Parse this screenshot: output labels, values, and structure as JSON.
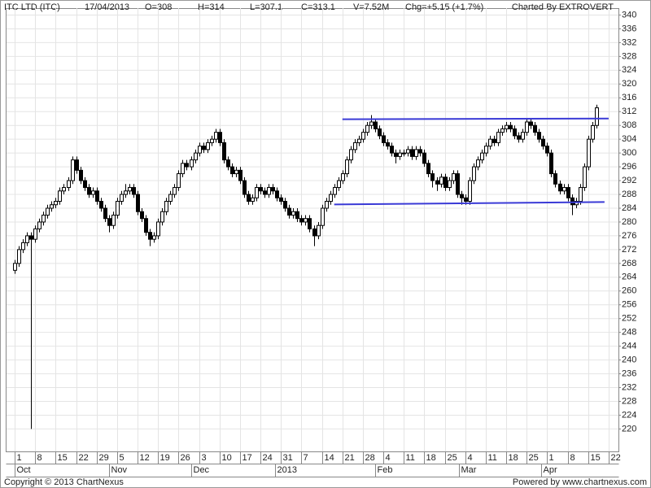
{
  "header": {
    "title": "ITC LTD (ITC)",
    "date": "17/04/2013",
    "open": "O=308",
    "high": "H=314",
    "low": "L=307.1",
    "close": "C=313.1",
    "volume": "V=7.52M",
    "change": "Chg=+5.15 (+1.7%)",
    "credit": "Charted By EXTROVERT"
  },
  "footer": {
    "copyright": "Copyright © 2013 ChartNexus",
    "powered": "Powered by www.chartnexus.com"
  },
  "chart_data": {
    "type": "candlestick",
    "x": [
      0,
      1,
      2,
      3,
      4,
      5,
      6,
      7,
      8,
      9,
      10,
      11,
      12,
      13,
      14,
      15,
      16,
      17,
      18,
      19,
      20,
      21,
      22,
      23,
      24,
      25,
      26,
      27,
      28,
      29,
      30,
      31,
      32,
      33,
      34,
      35,
      36,
      37,
      38,
      39,
      40,
      41,
      42,
      43,
      44,
      45,
      46,
      47,
      48,
      49,
      50,
      51,
      52,
      53,
      54,
      55,
      56,
      57,
      58,
      59,
      60,
      61,
      62,
      63,
      64,
      65,
      66,
      67,
      68,
      69,
      70,
      71,
      72,
      73,
      74,
      75,
      76,
      77,
      78,
      79,
      80,
      81,
      82,
      83,
      84,
      85,
      86,
      87,
      88,
      89,
      90,
      91,
      92,
      93,
      94,
      95,
      96,
      97,
      98,
      99,
      100,
      101,
      102,
      103,
      104,
      105,
      106,
      107,
      108,
      109,
      110,
      111,
      112,
      113,
      114,
      115,
      116,
      117,
      118,
      119,
      120,
      121,
      122,
      123,
      124,
      125,
      126,
      127,
      128,
      129,
      130,
      131,
      132,
      133,
      134,
      135,
      136,
      137,
      138,
      139,
      140,
      141,
      142
    ],
    "open": [
      266,
      268,
      272,
      274,
      276,
      275,
      278,
      280,
      282,
      284,
      285,
      286,
      289,
      290,
      292,
      298,
      295,
      292,
      290,
      288,
      289,
      286,
      284,
      281,
      279,
      282,
      286,
      288,
      289,
      290,
      288,
      283,
      281,
      277,
      275,
      276,
      280,
      283,
      286,
      288,
      290,
      294,
      297,
      296,
      298,
      300,
      302,
      301,
      303,
      304,
      306,
      303,
      298,
      296,
      294,
      295,
      292,
      288,
      286,
      287,
      290,
      289,
      288,
      290,
      289,
      287,
      286,
      284,
      282,
      283,
      281,
      280,
      281,
      278,
      276,
      279,
      284,
      286,
      288,
      290,
      292,
      294,
      298,
      301,
      303,
      304,
      306,
      308,
      309,
      307,
      305,
      303,
      302,
      300,
      299,
      300,
      300,
      301,
      299,
      301,
      300,
      297,
      294,
      292,
      291,
      293,
      290,
      292,
      294,
      288,
      287,
      286,
      292,
      296,
      298,
      300,
      302,
      304,
      303,
      306,
      307,
      308,
      307,
      305,
      304,
      306,
      309,
      308,
      306,
      304,
      302,
      300,
      294,
      291,
      289,
      290,
      287,
      285,
      286,
      290,
      296,
      304,
      308
    ],
    "high": [
      269,
      273,
      275,
      277,
      277,
      279,
      281,
      283,
      285,
      286,
      287,
      290,
      291,
      293,
      299,
      299,
      296,
      293,
      291,
      290,
      290,
      287,
      285,
      282,
      283,
      287,
      289,
      291,
      291,
      291,
      289,
      284,
      282,
      278,
      277,
      281,
      284,
      287,
      289,
      291,
      295,
      298,
      298,
      299,
      301,
      303,
      303,
      304,
      305,
      307,
      307,
      304,
      299,
      297,
      296,
      296,
      293,
      289,
      288,
      291,
      291,
      290,
      291,
      291,
      290,
      288,
      287,
      285,
      284,
      284,
      282,
      282,
      282,
      279,
      280,
      285,
      287,
      289,
      291,
      293,
      295,
      299,
      302,
      304,
      305,
      307,
      309,
      311,
      310,
      308,
      306,
      304,
      303,
      301,
      301,
      301,
      302,
      302,
      302,
      302,
      301,
      298,
      295,
      293,
      294,
      294,
      293,
      295,
      295,
      289,
      288,
      293,
      297,
      299,
      301,
      303,
      305,
      305,
      307,
      308,
      309,
      309,
      308,
      306,
      307,
      310,
      310,
      309,
      307,
      305,
      303,
      301,
      295,
      292,
      291,
      291,
      288,
      287,
      291,
      297,
      305,
      309,
      314
    ],
    "low": [
      265,
      267,
      271,
      273,
      220,
      274,
      277,
      279,
      281,
      283,
      284,
      285,
      288,
      289,
      291,
      294,
      291,
      289,
      287,
      287,
      285,
      283,
      280,
      277,
      278,
      281,
      285,
      287,
      288,
      287,
      282,
      280,
      276,
      273,
      274,
      275,
      279,
      282,
      285,
      287,
      289,
      293,
      295,
      295,
      297,
      299,
      300,
      300,
      302,
      303,
      302,
      297,
      295,
      293,
      293,
      291,
      287,
      285,
      285,
      286,
      288,
      287,
      287,
      288,
      286,
      285,
      283,
      281,
      281,
      280,
      279,
      279,
      277,
      273,
      275,
      278,
      283,
      285,
      287,
      289,
      291,
      293,
      297,
      300,
      302,
      303,
      305,
      307,
      306,
      304,
      302,
      301,
      299,
      297,
      298,
      299,
      299,
      298,
      298,
      299,
      296,
      293,
      290,
      289,
      290,
      289,
      289,
      291,
      287,
      285,
      285,
      285,
      291,
      295,
      297,
      299,
      301,
      302,
      302,
      305,
      306,
      306,
      304,
      303,
      303,
      305,
      307,
      305,
      303,
      301,
      299,
      293,
      290,
      288,
      288,
      286,
      282,
      284,
      285,
      289,
      295,
      303,
      307.1
    ],
    "close": [
      268,
      272,
      274,
      276,
      275,
      278,
      280,
      282,
      284,
      285,
      286,
      289,
      290,
      292,
      298,
      295,
      292,
      290,
      288,
      289,
      286,
      284,
      281,
      279,
      282,
      286,
      288,
      289,
      290,
      288,
      283,
      281,
      277,
      275,
      276,
      280,
      283,
      286,
      288,
      290,
      294,
      297,
      296,
      298,
      300,
      302,
      301,
      303,
      304,
      306,
      303,
      298,
      296,
      294,
      295,
      292,
      288,
      286,
      287,
      290,
      289,
      288,
      290,
      289,
      287,
      286,
      284,
      282,
      283,
      281,
      280,
      281,
      278,
      276,
      279,
      284,
      286,
      288,
      290,
      292,
      294,
      298,
      301,
      303,
      304,
      306,
      308,
      309,
      307,
      305,
      303,
      302,
      300,
      299,
      300,
      300,
      301,
      299,
      301,
      300,
      297,
      294,
      292,
      291,
      293,
      290,
      292,
      294,
      288,
      287,
      286,
      292,
      296,
      298,
      300,
      302,
      304,
      303,
      306,
      307,
      308,
      307,
      305,
      304,
      306,
      309,
      308,
      306,
      304,
      302,
      300,
      294,
      291,
      289,
      290,
      287,
      285,
      286,
      290,
      296,
      304,
      307.95,
      313.1
    ],
    "up_color": "#ffffff",
    "down_color": "#000000",
    "wick_color": "#000000",
    "xlim": [
      -2,
      147.4
    ],
    "ylim": [
      213.5,
      342
    ],
    "yticks": [
      220,
      224,
      228,
      232,
      236,
      240,
      244,
      248,
      252,
      256,
      260,
      264,
      268,
      272,
      276,
      280,
      284,
      288,
      292,
      296,
      300,
      304,
      308,
      312,
      316,
      320,
      324,
      328,
      332,
      336,
      340
    ],
    "xticks": [
      {
        "value": 0,
        "label": "1"
      },
      {
        "value": 5,
        "label": "8"
      },
      {
        "value": 10,
        "label": "15"
      },
      {
        "value": 15,
        "label": "22"
      },
      {
        "value": 20,
        "label": "29"
      },
      {
        "value": 25,
        "label": "5"
      },
      {
        "value": 30,
        "label": "12"
      },
      {
        "value": 35,
        "label": "19"
      },
      {
        "value": 40,
        "label": "26"
      },
      {
        "value": 45,
        "label": "3"
      },
      {
        "value": 50,
        "label": "10"
      },
      {
        "value": 55,
        "label": "17"
      },
      {
        "value": 60,
        "label": "24"
      },
      {
        "value": 65,
        "label": "31"
      },
      {
        "value": 70,
        "label": "7"
      },
      {
        "value": 75,
        "label": "14"
      },
      {
        "value": 80,
        "label": "21"
      },
      {
        "value": 85,
        "label": "28"
      },
      {
        "value": 90,
        "label": "4"
      },
      {
        "value": 95,
        "label": "11"
      },
      {
        "value": 100,
        "label": "18"
      },
      {
        "value": 105,
        "label": "25"
      },
      {
        "value": 110,
        "label": "4"
      },
      {
        "value": 115,
        "label": "11"
      },
      {
        "value": 120,
        "label": "18"
      },
      {
        "value": 125,
        "label": "25"
      },
      {
        "value": 130,
        "label": "1"
      },
      {
        "value": 135,
        "label": "8"
      },
      {
        "value": 140,
        "label": "15"
      },
      {
        "value": 145,
        "label": "22"
      }
    ],
    "month_labels": [
      {
        "value": 0,
        "label": "Oct"
      },
      {
        "value": 23,
        "label": "Nov"
      },
      {
        "value": 43,
        "label": "Dec"
      },
      {
        "value": 63.5,
        "label": "2013"
      },
      {
        "value": 88,
        "label": "Feb"
      },
      {
        "value": 108.5,
        "label": "Mar"
      },
      {
        "value": 128.5,
        "label": "Apr"
      }
    ],
    "grid": true,
    "trend_lines": [
      {
        "color": "#3a3ad6",
        "x": [
          80,
          145
        ],
        "y": [
          309.8,
          310
        ]
      },
      {
        "color": "#3a3ad6",
        "x": [
          78,
          144
        ],
        "y": [
          285.1,
          285.8
        ]
      }
    ]
  }
}
